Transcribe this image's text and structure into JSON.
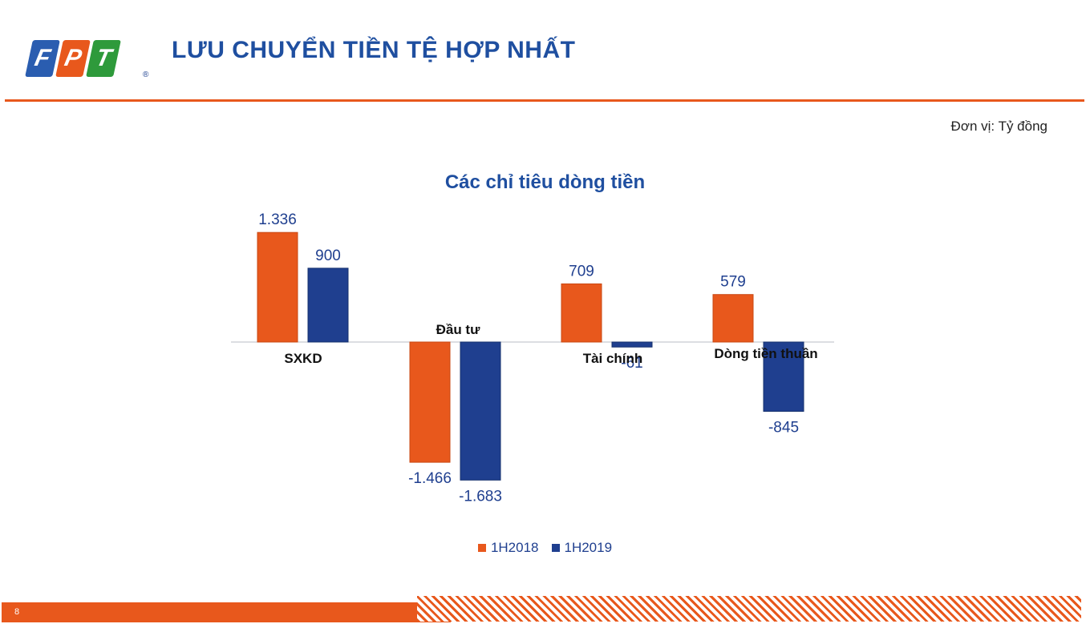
{
  "header": {
    "logo_letters": [
      "F",
      "P",
      "T"
    ],
    "logo_colors": [
      "#2a5db0",
      "#e8581c",
      "#2e9a3b"
    ],
    "logo_mark": "®",
    "title": "LƯU CHUYỂN TIỀN TỆ HỢP NHẤT"
  },
  "unit_label": "Đơn vị: Tỷ đồng",
  "footer": {
    "page_number": "8"
  },
  "colors": {
    "accent": "#e8581c",
    "brand_blue": "#1f4fa0"
  },
  "chart_data": {
    "type": "bar",
    "title": "Các chỉ tiêu dòng tiền",
    "categories": [
      "SXKD",
      "Đầu tư",
      "Tài chính",
      "Dòng tiền thuần"
    ],
    "series": [
      {
        "name": "1H2018",
        "color": "#e8581c",
        "values": [
          1336,
          -1466,
          709,
          579
        ],
        "labels": [
          "1.336",
          "-1.466",
          "709",
          "579"
        ]
      },
      {
        "name": "1H2019",
        "color": "#1f3f8f",
        "values": [
          900,
          -1683,
          -61,
          -845
        ],
        "labels": [
          "900",
          "-1.683",
          "-61",
          "-845"
        ]
      }
    ],
    "xlabel": "",
    "ylabel": "",
    "grid": false,
    "legend": "bottom"
  }
}
